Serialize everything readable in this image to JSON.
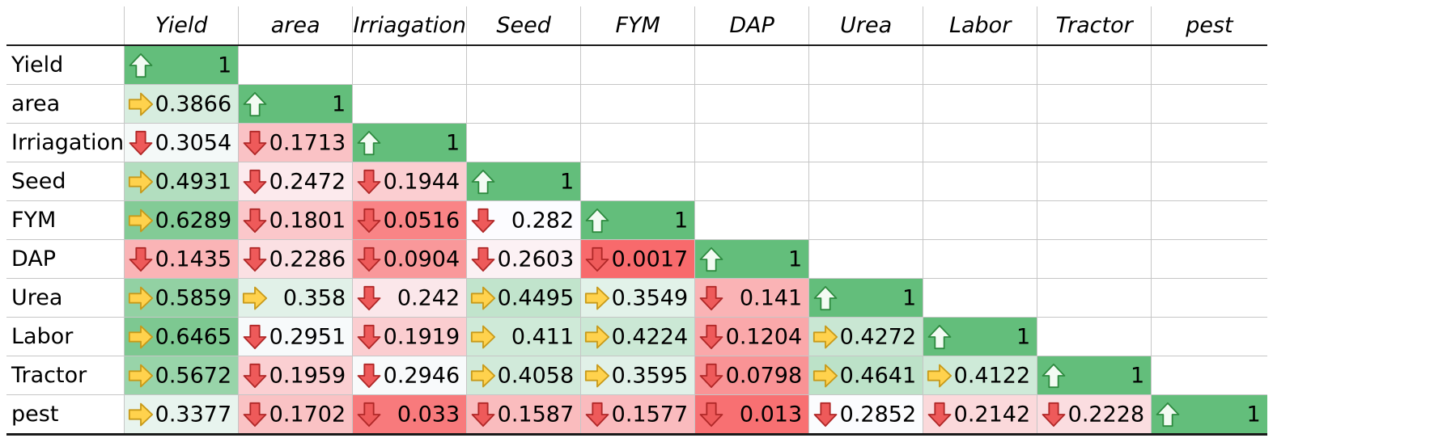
{
  "chart_data": {
    "type": "heatmap",
    "variables": [
      "Yield",
      "area",
      "Irriagation",
      "Seed",
      "FYM",
      "DAP",
      "Urea",
      "Labor",
      "Tractor",
      "pest"
    ],
    "matrix": [
      [
        "1"
      ],
      [
        "0.3866",
        "1"
      ],
      [
        "0.3054",
        "0.1713",
        "1"
      ],
      [
        "0.4931",
        "0.2472",
        "0.1944",
        "1"
      ],
      [
        "0.6289",
        "0.1801",
        "0.0516",
        "0.282",
        "1"
      ],
      [
        "0.1435",
        "0.2286",
        "0.0904",
        "0.2603",
        "0.0017",
        "1"
      ],
      [
        "0.5859",
        "0.358",
        "0.242",
        "0.4495",
        "0.3549",
        "0.141",
        "1"
      ],
      [
        "0.6465",
        "0.2951",
        "0.1919",
        "0.411",
        "0.4224",
        "0.1204",
        "0.4272",
        "1"
      ],
      [
        "0.5672",
        "0.1959",
        "0.2946",
        "0.4058",
        "0.3595",
        "0.0798",
        "0.4641",
        "0.4122",
        "1"
      ],
      [
        "0.3377",
        "0.1702",
        "0.033",
        "0.1587",
        "0.1577",
        "0.013",
        "0.2852",
        "0.2142",
        "0.2228",
        "1"
      ]
    ],
    "arrows": [
      [
        "up"
      ],
      [
        "right",
        "up"
      ],
      [
        "down",
        "down",
        "up"
      ],
      [
        "right",
        "down",
        "down",
        "up"
      ],
      [
        "right",
        "down",
        "down",
        "down",
        "up"
      ],
      [
        "down",
        "down",
        "down",
        "down",
        "down",
        "up"
      ],
      [
        "right",
        "right",
        "down",
        "right",
        "right",
        "down",
        "up"
      ],
      [
        "right",
        "down",
        "down",
        "right",
        "right",
        "down",
        "right",
        "up"
      ],
      [
        "right",
        "down",
        "down",
        "right",
        "right",
        "down",
        "right",
        "right",
        "up"
      ],
      [
        "right",
        "down",
        "down",
        "down",
        "down",
        "down",
        "down",
        "down",
        "down",
        "up"
      ]
    ],
    "color_scale": {
      "low": "#f8696b",
      "mid": "#fcfcff",
      "high": "#63be7b",
      "range": [
        0,
        1
      ]
    },
    "icon_colors": {
      "up": "#6fc47a",
      "right": "#ffd24d",
      "down": "#ee5a5a"
    }
  }
}
